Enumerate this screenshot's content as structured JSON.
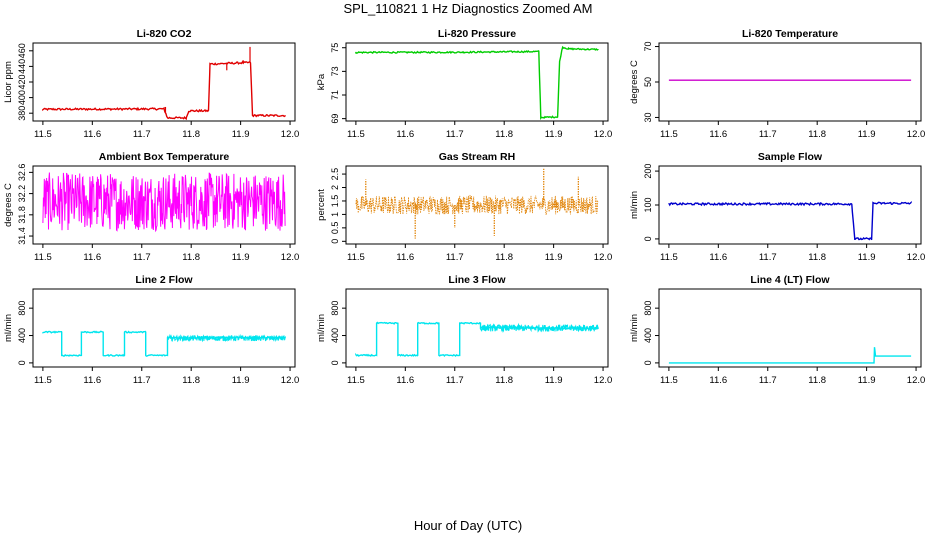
{
  "figure": {
    "title": "SPL_110821  1 Hz Diagnostics Zoomed AM",
    "xlabel": "Hour of Day (UTC)"
  },
  "chart_data": [
    {
      "type": "line",
      "title": "Li-820 CO2",
      "ylabel": "Licor ppm",
      "xlim": [
        11.48,
        12.01
      ],
      "ylim": [
        370,
        470
      ],
      "yticks": [
        380,
        400,
        420,
        440,
        460
      ],
      "xticks": [
        11.5,
        11.6,
        11.7,
        11.8,
        11.9,
        12.0
      ],
      "color": "#e00000",
      "noise": 1.2,
      "series": [
        {
          "points": [
            [
              11.5,
              385
            ],
            [
              11.745,
              385.5
            ],
            [
              11.752,
              374
            ],
            [
              11.79,
              374
            ],
            [
              11.795,
              383
            ],
            [
              11.835,
              383
            ],
            [
              11.838,
              443
            ],
            [
              11.92,
              445
            ],
            [
              11.924,
              377
            ],
            [
              11.99,
              377
            ]
          ]
        }
      ],
      "spikes": [
        [
          11.872,
          435
        ],
        [
          11.905,
          448
        ],
        [
          11.919,
          465
        ],
        [
          11.748,
          388
        ]
      ]
    },
    {
      "type": "line",
      "title": "Li-820 Pressure",
      "ylabel": "kPa",
      "xlim": [
        11.48,
        12.01
      ],
      "ylim": [
        68.8,
        75.4
      ],
      "yticks": [
        69,
        71,
        73,
        75
      ],
      "xticks": [
        11.5,
        11.6,
        11.7,
        11.8,
        11.9,
        12.0
      ],
      "color": "#00cc00",
      "noise": 0.06,
      "series": [
        {
          "points": [
            [
              11.5,
              74.6
            ],
            [
              11.72,
              74.62
            ],
            [
              11.87,
              74.68
            ],
            [
              11.874,
              69.1
            ],
            [
              11.908,
              69.15
            ],
            [
              11.912,
              73.8
            ],
            [
              11.918,
              75.05
            ],
            [
              11.93,
              74.9
            ],
            [
              11.99,
              74.85
            ]
          ]
        }
      ]
    },
    {
      "type": "line",
      "title": "Li-820 Temperature",
      "ylabel": "degrees C",
      "xlim": [
        11.48,
        12.01
      ],
      "ylim": [
        28,
        72
      ],
      "yticks": [
        30,
        50,
        70
      ],
      "xticks": [
        11.5,
        11.6,
        11.7,
        11.8,
        11.9,
        12.0
      ],
      "color": "#cc00cc",
      "noise": 0,
      "series": [
        {
          "points": [
            [
              11.5,
              51
            ],
            [
              11.99,
              51
            ]
          ]
        }
      ]
    },
    {
      "type": "line",
      "title": "Ambient Box Temperature",
      "ylabel": "degrees C",
      "xlim": [
        11.48,
        12.01
      ],
      "ylim": [
        31.25,
        32.72
      ],
      "yticks": [
        31.4,
        31.8,
        32.2,
        32.6
      ],
      "xticks": [
        11.5,
        11.6,
        11.7,
        11.8,
        11.9,
        12.0
      ],
      "color": "#ff00ff",
      "band": [
        31.5,
        32.6
      ]
    },
    {
      "type": "scatter",
      "title": "Gas Stream RH",
      "ylabel": "percent",
      "xlim": [
        11.48,
        12.01
      ],
      "ylim": [
        -0.1,
        2.8
      ],
      "yticks": [
        0.0,
        0.5,
        1.0,
        1.5,
        2.0,
        2.5
      ],
      "xticks": [
        11.5,
        11.6,
        11.7,
        11.8,
        11.9,
        12.0
      ],
      "color": "#e08000",
      "band": [
        1.0,
        1.7
      ],
      "spikes": [
        [
          11.62,
          0.1
        ],
        [
          11.88,
          2.7
        ],
        [
          11.78,
          0.2
        ],
        [
          11.52,
          2.3
        ],
        [
          11.95,
          2.4
        ],
        [
          11.7,
          0.5
        ]
      ]
    },
    {
      "type": "line",
      "title": "Sample Flow",
      "ylabel": "ml/min",
      "xlim": [
        11.48,
        12.01
      ],
      "ylim": [
        -15,
        215
      ],
      "yticks": [
        0,
        100,
        200
      ],
      "xticks": [
        11.5,
        11.6,
        11.7,
        11.8,
        11.9,
        12.0
      ],
      "color": "#0000cc",
      "noise": 3,
      "series": [
        {
          "points": [
            [
              11.5,
              103
            ],
            [
              11.87,
              103
            ],
            [
              11.876,
              0
            ],
            [
              11.91,
              0
            ],
            [
              11.913,
              105
            ],
            [
              11.99,
              105
            ]
          ]
        }
      ]
    },
    {
      "type": "line",
      "title": "Line 2 Flow",
      "ylabel": "ml/min",
      "xlim": [
        11.48,
        12.01
      ],
      "ylim": [
        -60,
        1080
      ],
      "yticks": [
        0,
        400,
        800
      ],
      "xticks": [
        11.5,
        11.6,
        11.7,
        11.8,
        11.9,
        12.0
      ],
      "color": "#00e5ee",
      "noise": 10,
      "series": [
        {
          "points": [
            [
              11.5,
              450
            ],
            [
              11.538,
              450
            ],
            [
              11.538,
              110
            ],
            [
              11.578,
              110
            ],
            [
              11.578,
              450
            ],
            [
              11.622,
              450
            ],
            [
              11.622,
              110
            ],
            [
              11.665,
              110
            ],
            [
              11.665,
              450
            ],
            [
              11.708,
              450
            ],
            [
              11.708,
              110
            ],
            [
              11.752,
              110
            ],
            [
              11.752,
              370
            ],
            [
              11.99,
              370
            ]
          ]
        }
      ],
      "bandSeg": [
        11.752,
        11.99,
        320,
        400
      ]
    },
    {
      "type": "line",
      "title": "Line 3 Flow",
      "ylabel": "ml/min",
      "xlim": [
        11.48,
        12.01
      ],
      "ylim": [
        -60,
        1080
      ],
      "yticks": [
        0,
        400,
        800
      ],
      "xticks": [
        11.5,
        11.6,
        11.7,
        11.8,
        11.9,
        12.0
      ],
      "color": "#00e5ee",
      "noise": 10,
      "series": [
        {
          "points": [
            [
              11.5,
              110
            ],
            [
              11.542,
              110
            ],
            [
              11.542,
              580
            ],
            [
              11.585,
              580
            ],
            [
              11.585,
              110
            ],
            [
              11.625,
              110
            ],
            [
              11.625,
              580
            ],
            [
              11.668,
              580
            ],
            [
              11.668,
              110
            ],
            [
              11.71,
              110
            ],
            [
              11.71,
              580
            ],
            [
              11.752,
              580
            ],
            [
              11.752,
              520
            ],
            [
              11.99,
              500
            ]
          ]
        }
      ],
      "bandSeg": [
        11.752,
        11.99,
        460,
        560
      ]
    },
    {
      "type": "line",
      "title": "Line 4 (LT) Flow",
      "ylabel": "ml/min",
      "xlim": [
        11.48,
        12.01
      ],
      "ylim": [
        -60,
        1080
      ],
      "yticks": [
        0,
        400,
        800
      ],
      "xticks": [
        11.5,
        11.6,
        11.7,
        11.8,
        11.9,
        12.0
      ],
      "color": "#00e5ee",
      "noise": 0,
      "series": [
        {
          "points": [
            [
              11.5,
              0
            ],
            [
              11.915,
              0
            ],
            [
              11.916,
              230
            ],
            [
              11.918,
              100
            ],
            [
              11.99,
              100
            ]
          ]
        }
      ]
    }
  ]
}
